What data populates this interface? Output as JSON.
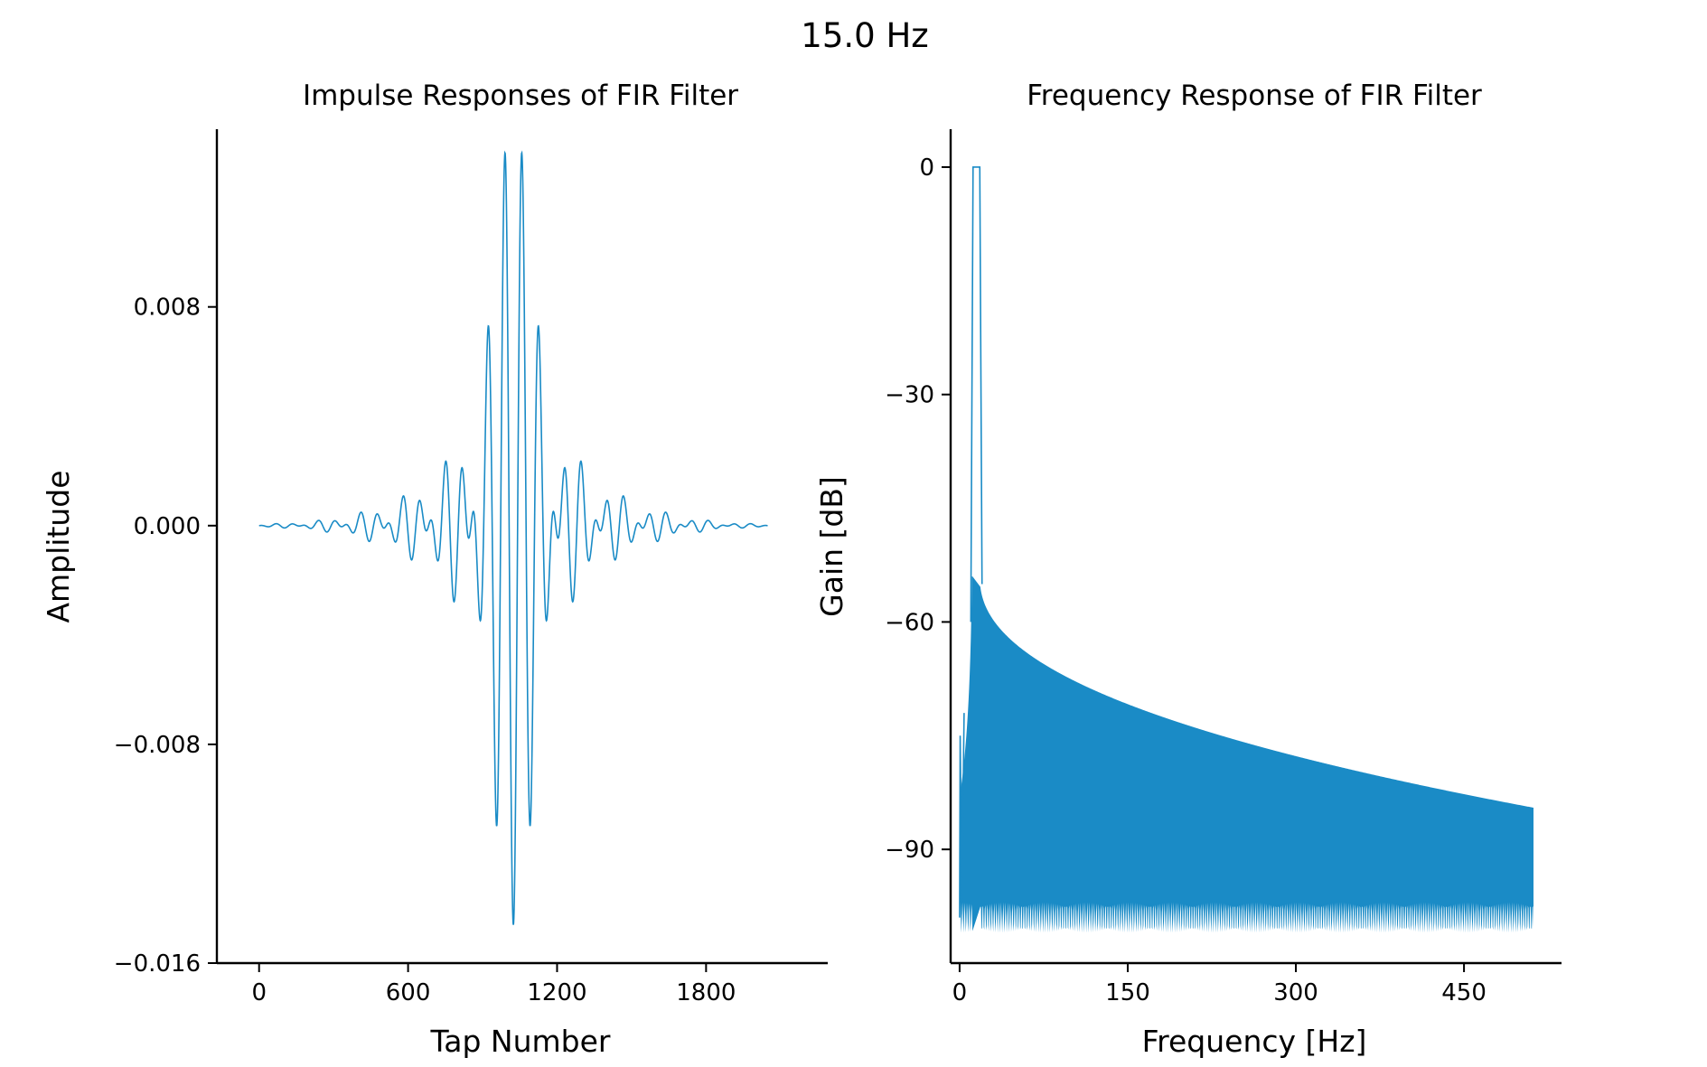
{
  "figure": {
    "suptitle": "15.0 Hz"
  },
  "colors": {
    "line": "#1a8bc6",
    "axis": "#000000"
  },
  "chart_data": [
    {
      "type": "line",
      "title": "Impulse Responses of FIR Filter",
      "xlabel": "Tap Number",
      "ylabel": "Amplitude",
      "xlim": [
        -170,
        2290
      ],
      "ylim": [
        -0.016,
        0.0145
      ],
      "xticks": [
        0,
        600,
        1200,
        1800
      ],
      "xtick_labels": [
        "0",
        "600",
        "1200",
        "1800"
      ],
      "yticks": [
        -0.016,
        -0.008,
        0.0,
        0.008
      ],
      "ytick_labels": [
        "−0.016",
        "−0.008",
        "0.000",
        "0.008"
      ],
      "grid": false,
      "legend": "none",
      "series": [
        {
          "n_taps": 2049,
          "center_tap": 1024,
          "peaks": [
            {
              "x": 1024,
              "y": -0.0146
            },
            {
              "x": 990,
              "y": 0.0132
            },
            {
              "x": 1058,
              "y": 0.0132
            },
            {
              "x": 955,
              "y": -0.0093
            },
            {
              "x": 1093,
              "y": -0.0093
            },
            {
              "x": 922,
              "y": 0.0045
            },
            {
              "x": 1126,
              "y": 0.0045
            },
            {
              "x": 820,
              "y": 0.0029
            },
            {
              "x": 1228,
              "y": 0.0029
            },
            {
              "x": 840,
              "y": -0.0025
            },
            {
              "x": 1208,
              "y": -0.0025
            }
          ]
        }
      ]
    },
    {
      "type": "line",
      "title": "Frequency Response of FIR Filter",
      "xlabel": "Frequency [Hz]",
      "ylabel": "Gain [dB]",
      "xlim": [
        -8,
        537
      ],
      "ylim": [
        -105,
        5
      ],
      "xticks": [
        0,
        150,
        300,
        450
      ],
      "xtick_labels": [
        "0",
        "150",
        "300",
        "450"
      ],
      "yticks": [
        0,
        -30,
        -60,
        -90
      ],
      "ytick_labels": [
        "0",
        "−30",
        "−60",
        "−90"
      ],
      "grid": false,
      "legend": "none",
      "series": [
        {
          "passband_hz": [
            12,
            18
          ],
          "passband_gain_db": 0,
          "sidelobe_peak_db": -54,
          "envelope_top_at_512_db": -84.5,
          "envelope_bottom_db": -99,
          "x_max_hz": 512
        }
      ]
    }
  ]
}
